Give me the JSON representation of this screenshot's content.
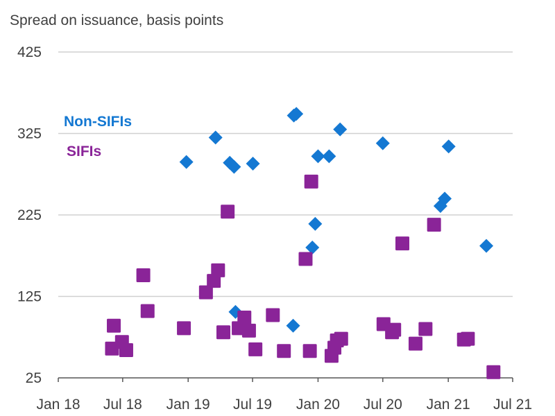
{
  "chart_data": {
    "type": "scatter",
    "ylabel": "Spread on issuance, basis points",
    "ylim": [
      25,
      425
    ],
    "yticks": [
      25,
      125,
      225,
      325,
      425
    ],
    "xlim": [
      "2018-01-01",
      "2021-07-01"
    ],
    "xticks": [
      {
        "label": "Jan 18",
        "date": "2018-01-01"
      },
      {
        "label": "Jul 18",
        "date": "2018-07-01"
      },
      {
        "label": "Jan 19",
        "date": "2019-01-01"
      },
      {
        "label": "Jul 19",
        "date": "2019-07-01"
      },
      {
        "label": "Jan 20",
        "date": "2020-01-01"
      },
      {
        "label": "Jul 20",
        "date": "2020-07-01"
      },
      {
        "label": "Jan 21",
        "date": "2021-01-01"
      },
      {
        "label": "Jul 21",
        "date": "2021-07-01"
      }
    ],
    "grid": true,
    "legend_position": "top-left",
    "series": [
      {
        "name": "Non-SIFIs",
        "color": "#1478D2",
        "marker": "diamond",
        "points": [
          {
            "x": "2018-12-27",
            "y": 290
          },
          {
            "x": "2019-03-19",
            "y": 320
          },
          {
            "x": "2019-04-28",
            "y": 289
          },
          {
            "x": "2019-05-10",
            "y": 284
          },
          {
            "x": "2019-05-14",
            "y": 106
          },
          {
            "x": "2019-07-02",
            "y": 288
          },
          {
            "x": "2019-10-23",
            "y": 89
          },
          {
            "x": "2019-10-25",
            "y": 347
          },
          {
            "x": "2019-11-01",
            "y": 349
          },
          {
            "x": "2019-12-16",
            "y": 185
          },
          {
            "x": "2019-12-24",
            "y": 214
          },
          {
            "x": "2020-01-01",
            "y": 297
          },
          {
            "x": "2020-02-01",
            "y": 297
          },
          {
            "x": "2020-03-03",
            "y": 330
          },
          {
            "x": "2020-07-01",
            "y": 313
          },
          {
            "x": "2020-12-10",
            "y": 236
          },
          {
            "x": "2020-12-22",
            "y": 245
          },
          {
            "x": "2021-01-02",
            "y": 309
          },
          {
            "x": "2021-04-18",
            "y": 187
          }
        ]
      },
      {
        "name": "SIFIs",
        "color": "#8A2498",
        "marker": "square",
        "points": [
          {
            "x": "2018-06-01",
            "y": 61
          },
          {
            "x": "2018-06-06",
            "y": 89
          },
          {
            "x": "2018-06-29",
            "y": 69
          },
          {
            "x": "2018-07-11",
            "y": 59
          },
          {
            "x": "2018-08-28",
            "y": 151
          },
          {
            "x": "2018-09-09",
            "y": 107
          },
          {
            "x": "2018-12-20",
            "y": 86
          },
          {
            "x": "2019-02-20",
            "y": 130
          },
          {
            "x": "2019-03-14",
            "y": 144
          },
          {
            "x": "2019-03-26",
            "y": 157
          },
          {
            "x": "2019-04-10",
            "y": 81
          },
          {
            "x": "2019-04-22",
            "y": 229
          },
          {
            "x": "2019-05-23",
            "y": 86
          },
          {
            "x": "2019-06-08",
            "y": 99
          },
          {
            "x": "2019-06-21",
            "y": 83
          },
          {
            "x": "2019-07-09",
            "y": 60
          },
          {
            "x": "2019-08-27",
            "y": 102
          },
          {
            "x": "2019-09-27",
            "y": 58
          },
          {
            "x": "2019-11-27",
            "y": 171
          },
          {
            "x": "2019-12-09",
            "y": 58
          },
          {
            "x": "2019-12-13",
            "y": 266
          },
          {
            "x": "2020-02-08",
            "y": 52
          },
          {
            "x": "2020-02-16",
            "y": 62
          },
          {
            "x": "2020-02-23",
            "y": 71
          },
          {
            "x": "2020-03-06",
            "y": 73
          },
          {
            "x": "2020-07-03",
            "y": 91
          },
          {
            "x": "2020-07-27",
            "y": 81
          },
          {
            "x": "2020-08-02",
            "y": 84
          },
          {
            "x": "2020-08-25",
            "y": 190
          },
          {
            "x": "2020-10-01",
            "y": 67
          },
          {
            "x": "2020-10-29",
            "y": 85
          },
          {
            "x": "2020-11-22",
            "y": 213
          },
          {
            "x": "2021-02-14",
            "y": 72
          },
          {
            "x": "2021-02-25",
            "y": 73
          },
          {
            "x": "2021-05-08",
            "y": 32
          }
        ]
      }
    ]
  }
}
